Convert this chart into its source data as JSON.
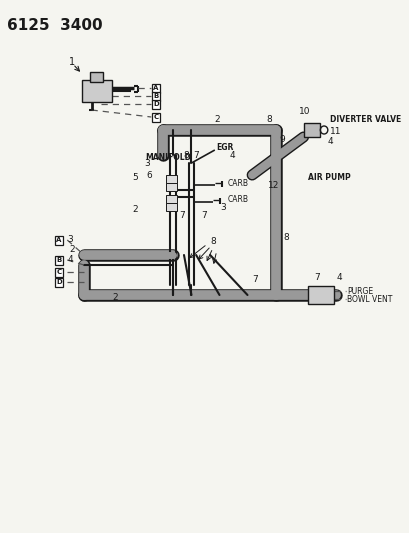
{
  "title": "6125  3400",
  "bg_color": "#f5f5f0",
  "line_color": "#1a1a1a",
  "gray_hose": "#999999",
  "dark_line": "#333333",
  "fig_width": 4.1,
  "fig_height": 5.33,
  "dpi": 100,
  "labels": {
    "manifold": "MANIFOLD",
    "egr": "EGR",
    "carb1": "CARB",
    "carb2": "CARB",
    "purge": "PURGE",
    "bowl_vent": "BOWL VENT",
    "diverter": "DIVERTER VALVE",
    "air_pump": "AIR PUMP"
  }
}
